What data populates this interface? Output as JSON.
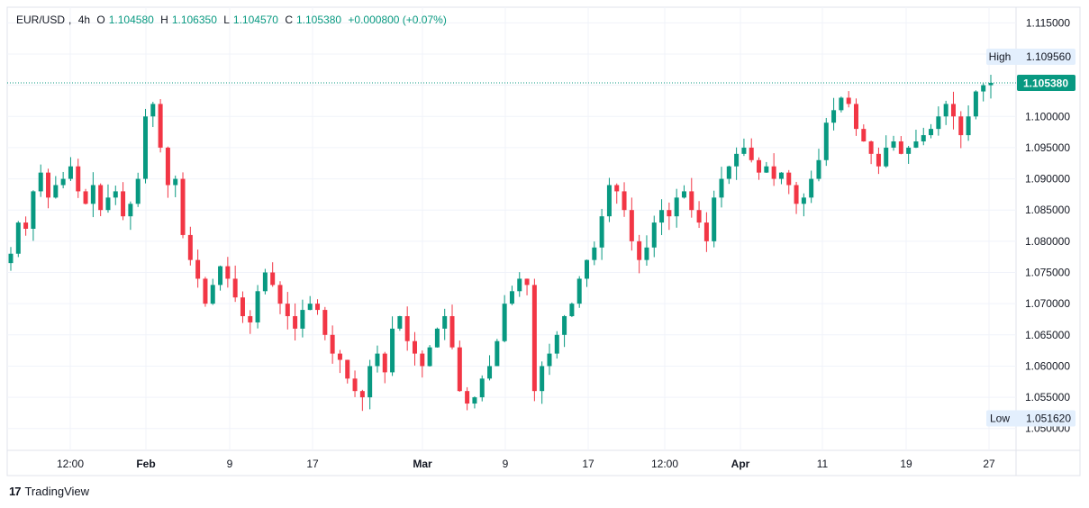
{
  "header": {
    "symbol": "EUR/USD",
    "interval": "4h",
    "open_label": "O",
    "open": "1.104580",
    "high_label": "H",
    "high": "1.106350",
    "low_label": "L",
    "low": "1.104570",
    "close_label": "C",
    "close": "1.105380",
    "change": "+0.000800 (+0.07%)"
  },
  "footer": {
    "logo": "17",
    "brand": "TradingView"
  },
  "colors": {
    "up": "#089981",
    "down": "#f23645",
    "grid": "#f0f3fa",
    "axis_text": "#131722",
    "price_badge": "#089981"
  },
  "chart_data": {
    "type": "candlestick",
    "y_ticks": [
      "1.115000",
      "1.110000",
      "1.105000",
      "1.100000",
      "1.095000",
      "1.090000",
      "1.085000",
      "1.080000",
      "1.075000",
      "1.070000",
      "1.065000",
      "1.060000",
      "1.055000",
      "1.050000"
    ],
    "x_ticks": [
      "12:00",
      "Feb",
      "9",
      "17",
      "Mar",
      "9",
      "17",
      "12:00",
      "Apr",
      "11",
      "19",
      "27"
    ],
    "bold_x_ticks": [
      "Feb",
      "Mar",
      "Apr"
    ],
    "ylim": [
      1.0465,
      1.1175
    ],
    "markers": [
      {
        "label": "High",
        "value": 1.10956,
        "text": "1.109560"
      },
      {
        "label": "Low",
        "value": 1.05162,
        "text": "1.051620"
      }
    ],
    "last_price": {
      "value": 1.10538,
      "text": "1.105380"
    },
    "grid": true,
    "path_closes": [
      1.078,
      1.083,
      1.082,
      1.088,
      1.091,
      1.087,
      1.089,
      1.09,
      1.092,
      1.088,
      1.086,
      1.089,
      1.085,
      1.087,
      1.088,
      1.084,
      1.086,
      1.09,
      1.1,
      1.102,
      1.095,
      1.089,
      1.09,
      1.081,
      1.077,
      1.074,
      1.07,
      1.073,
      1.076,
      1.074,
      1.071,
      1.068,
      1.067,
      1.072,
      1.075,
      1.073,
      1.07,
      1.068,
      1.066,
      1.069,
      1.07,
      1.069,
      1.065,
      1.062,
      1.061,
      1.058,
      1.056,
      1.055,
      1.06,
      1.062,
      1.059,
      1.066,
      1.068,
      1.064,
      1.062,
      1.06,
      1.063,
      1.066,
      1.068,
      1.063,
      1.056,
      1.054,
      1.055,
      1.058,
      1.06,
      1.064,
      1.07,
      1.072,
      1.074,
      1.073,
      1.056,
      1.06,
      1.062,
      1.065,
      1.068,
      1.07,
      1.074,
      1.077,
      1.079,
      1.084,
      1.089,
      1.088,
      1.085,
      1.08,
      1.077,
      1.079,
      1.083,
      1.085,
      1.084,
      1.087,
      1.088,
      1.085,
      1.083,
      1.08,
      1.087,
      1.09,
      1.092,
      1.094,
      1.095,
      1.093,
      1.091,
      1.092,
      1.09,
      1.091,
      1.089,
      1.086,
      1.087,
      1.09,
      1.093,
      1.099,
      1.101,
      1.103,
      1.102,
      1.098,
      1.096,
      1.094,
      1.092,
      1.095,
      1.096,
      1.094,
      1.095,
      1.096,
      1.097,
      1.098,
      1.1,
      1.102,
      1.1,
      1.097,
      1.1,
      1.104,
      1.105,
      1.10538
    ]
  }
}
